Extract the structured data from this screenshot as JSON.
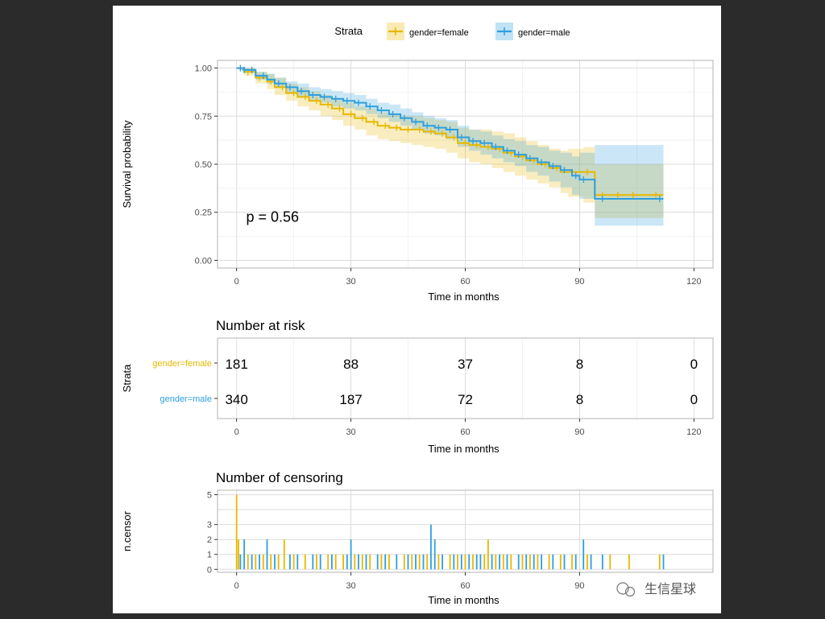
{
  "colors": {
    "female": "#E7B800",
    "male": "#2E9FDF",
    "grid": "#dcdcdc",
    "axis_text": "#4d4d4d",
    "panel_border": "#b3b3b3",
    "background": "#2b2b2b",
    "panel": "#ffffff"
  },
  "chart_data": [
    {
      "type": "line",
      "subtype": "kaplan-meier",
      "legend_title": "Strata",
      "legend_position": "top",
      "xlabel": "Time in months",
      "ylabel": "Survival probability",
      "xlim": [
        -5,
        125
      ],
      "ylim": [
        -0.04,
        1.04
      ],
      "xticks": [
        0,
        30,
        60,
        90,
        120
      ],
      "yticks": [
        0.0,
        0.25,
        0.5,
        0.75,
        1.0
      ],
      "ytick_labels": [
        "0.00",
        "0.25",
        "0.50",
        "0.75",
        "1.00"
      ],
      "annotation": "p = 0.56",
      "series": [
        {
          "name": "gender=female",
          "x": [
            0,
            2,
            5,
            8,
            10,
            13,
            16,
            19,
            22,
            25,
            28,
            31,
            34,
            37,
            40,
            43,
            46,
            49,
            52,
            55,
            58,
            61,
            64,
            67,
            70,
            73,
            76,
            79,
            82,
            85,
            87,
            91,
            94,
            98,
            103,
            108,
            112
          ],
          "y": [
            1.0,
            0.98,
            0.95,
            0.93,
            0.9,
            0.87,
            0.85,
            0.83,
            0.81,
            0.79,
            0.76,
            0.74,
            0.72,
            0.7,
            0.69,
            0.68,
            0.68,
            0.67,
            0.66,
            0.64,
            0.61,
            0.6,
            0.59,
            0.58,
            0.56,
            0.54,
            0.52,
            0.5,
            0.48,
            0.46,
            0.46,
            0.46,
            0.34,
            0.34,
            0.34,
            0.34,
            0.34
          ],
          "lower": [
            1.0,
            0.96,
            0.92,
            0.89,
            0.86,
            0.83,
            0.8,
            0.78,
            0.75,
            0.73,
            0.7,
            0.68,
            0.65,
            0.63,
            0.62,
            0.61,
            0.6,
            0.59,
            0.58,
            0.56,
            0.53,
            0.51,
            0.5,
            0.48,
            0.46,
            0.44,
            0.42,
            0.4,
            0.38,
            0.35,
            0.33,
            0.3,
            0.22,
            0.22,
            0.22,
            0.22,
            0.22
          ],
          "upper": [
            1.0,
            1.0,
            0.98,
            0.97,
            0.95,
            0.92,
            0.9,
            0.88,
            0.86,
            0.84,
            0.82,
            0.8,
            0.79,
            0.77,
            0.76,
            0.75,
            0.75,
            0.74,
            0.73,
            0.72,
            0.69,
            0.68,
            0.68,
            0.67,
            0.66,
            0.64,
            0.62,
            0.6,
            0.58,
            0.57,
            0.58,
            0.59,
            0.5,
            0.5,
            0.5,
            0.5,
            0.5
          ]
        },
        {
          "name": "gender=male",
          "x": [
            0,
            2,
            5,
            8,
            10,
            13,
            16,
            19,
            22,
            25,
            28,
            31,
            34,
            37,
            40,
            43,
            46,
            49,
            52,
            55,
            58,
            61,
            64,
            67,
            70,
            73,
            76,
            79,
            82,
            85,
            88,
            90,
            94,
            98,
            103,
            108,
            112
          ],
          "y": [
            1.0,
            0.99,
            0.96,
            0.94,
            0.92,
            0.9,
            0.88,
            0.86,
            0.85,
            0.84,
            0.83,
            0.82,
            0.8,
            0.78,
            0.76,
            0.74,
            0.72,
            0.7,
            0.69,
            0.68,
            0.64,
            0.62,
            0.61,
            0.59,
            0.57,
            0.55,
            0.53,
            0.51,
            0.49,
            0.47,
            0.44,
            0.42,
            0.32,
            0.32,
            0.32,
            0.32,
            0.32
          ],
          "lower": [
            1.0,
            0.98,
            0.94,
            0.92,
            0.9,
            0.87,
            0.85,
            0.83,
            0.82,
            0.8,
            0.79,
            0.78,
            0.76,
            0.74,
            0.72,
            0.7,
            0.68,
            0.66,
            0.65,
            0.63,
            0.59,
            0.57,
            0.55,
            0.53,
            0.51,
            0.49,
            0.46,
            0.44,
            0.41,
            0.38,
            0.34,
            0.32,
            0.18,
            0.18,
            0.18,
            0.18,
            0.18
          ],
          "upper": [
            1.0,
            1.0,
            0.98,
            0.97,
            0.95,
            0.93,
            0.92,
            0.9,
            0.89,
            0.88,
            0.87,
            0.86,
            0.84,
            0.82,
            0.81,
            0.79,
            0.77,
            0.75,
            0.74,
            0.73,
            0.7,
            0.68,
            0.67,
            0.65,
            0.63,
            0.62,
            0.6,
            0.59,
            0.57,
            0.56,
            0.54,
            0.56,
            0.6,
            0.6,
            0.6,
            0.6,
            0.6
          ]
        }
      ],
      "censor_times": {
        "gender=female": [
          1,
          3,
          6,
          9,
          12,
          15,
          18,
          21,
          24,
          27,
          30,
          33,
          36,
          39,
          42,
          45,
          48,
          51,
          54,
          57,
          60,
          63,
          66,
          69,
          72,
          75,
          78,
          81,
          84,
          88,
          92,
          96,
          100,
          104,
          110
        ],
        "gender=male": [
          1,
          2,
          4,
          7,
          11,
          14,
          17,
          20,
          23,
          26,
          29,
          32,
          35,
          38,
          41,
          44,
          47,
          50,
          53,
          56,
          59,
          62,
          65,
          68,
          71,
          74,
          77,
          80,
          83,
          86,
          89,
          91,
          96,
          111
        ]
      }
    },
    {
      "type": "table",
      "title": "Number at risk",
      "ylabel": "Strata",
      "xlabel": "Time in months",
      "xticks": [
        0,
        30,
        60,
        90,
        120
      ],
      "rows": [
        {
          "name": "gender=female",
          "values": [
            181,
            88,
            37,
            8,
            0
          ]
        },
        {
          "name": "gender=male",
          "values": [
            340,
            187,
            72,
            8,
            0
          ]
        }
      ]
    },
    {
      "type": "bar",
      "title": "Number of censoring",
      "ylabel": "n.censor",
      "xlabel": "Time in months",
      "xticks": [
        0,
        30,
        60,
        90
      ],
      "yticks": [
        0,
        1,
        2,
        3,
        5
      ],
      "ylim": [
        -0.2,
        5.3
      ],
      "series": [
        {
          "name": "gender=female",
          "x": [
            0,
            0.5,
            3,
            5,
            7,
            9,
            11,
            12.5,
            15,
            18,
            21,
            24,
            26,
            28,
            31,
            33,
            35,
            38,
            40,
            44,
            46,
            48,
            50,
            53,
            56,
            58,
            60,
            62,
            65,
            66,
            68,
            70,
            72,
            75,
            77,
            79,
            82,
            85,
            88,
            92,
            98,
            103,
            111
          ],
          "values": [
            5,
            2,
            1,
            1,
            1,
            1,
            1,
            2,
            1,
            1,
            1,
            1,
            1,
            1,
            1,
            1,
            1,
            1,
            1,
            1,
            1,
            1,
            1,
            1,
            1,
            1,
            1,
            1,
            1,
            2,
            1,
            1,
            1,
            1,
            1,
            1,
            1,
            1,
            1,
            1,
            1,
            1,
            1
          ]
        },
        {
          "name": "gender=male",
          "x": [
            1,
            2,
            4,
            6,
            8,
            10,
            14,
            16,
            20,
            22,
            25,
            29,
            30,
            32,
            34,
            37,
            39,
            42,
            45,
            47,
            49,
            51,
            52,
            54,
            57,
            59,
            61,
            63,
            64,
            67,
            69,
            71,
            74,
            76,
            78,
            80,
            83,
            86,
            89,
            91,
            93,
            96,
            112
          ],
          "values": [
            1,
            2,
            1,
            1,
            2,
            1,
            1,
            1,
            1,
            1,
            1,
            1,
            2,
            1,
            1,
            1,
            1,
            1,
            1,
            1,
            1,
            3,
            2,
            1,
            1,
            1,
            1,
            1,
            1,
            1,
            1,
            1,
            1,
            1,
            1,
            1,
            1,
            1,
            1,
            2,
            1,
            1,
            1
          ]
        }
      ]
    }
  ],
  "watermark": "生信星球"
}
